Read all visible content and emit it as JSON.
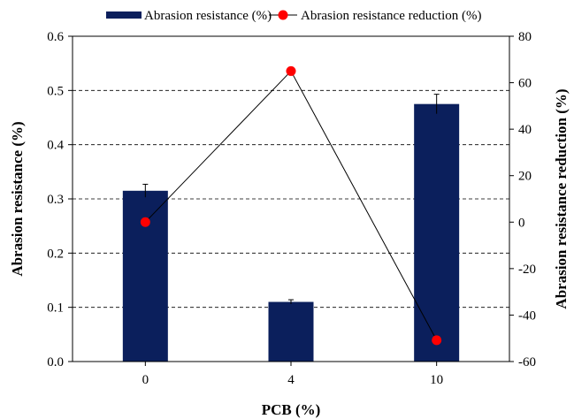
{
  "chart_data": {
    "type": "bar",
    "categories": [
      "0",
      "4",
      "10"
    ],
    "xlabel": "PCB (%)",
    "ylabel": "Abrasion resistance (%)",
    "y2label": "Abrasion resistance reduction (%)",
    "ylim": [
      0,
      0.6
    ],
    "y2lim": [
      -60,
      80
    ],
    "yticks": [
      "0.0",
      "0.1",
      "0.2",
      "0.3",
      "0.4",
      "0.5",
      "0.6"
    ],
    "y2ticks": [
      "-60",
      "-40",
      "-20",
      "0",
      "20",
      "40",
      "60",
      "80"
    ],
    "grid": "horizontal dashed",
    "legend": "top-center",
    "series": [
      {
        "name": "Abrasion resistance (%)",
        "type": "bar",
        "axis": "left",
        "color": "#0b1f5c",
        "values": [
          0.315,
          0.11,
          0.475
        ],
        "errors": [
          0.012,
          0.004,
          0.018
        ]
      },
      {
        "name": "Abrasion resistance reduction (%)",
        "type": "line",
        "axis": "right",
        "color": "#ff0000",
        "values": [
          0,
          65,
          -50.8
        ]
      }
    ]
  }
}
